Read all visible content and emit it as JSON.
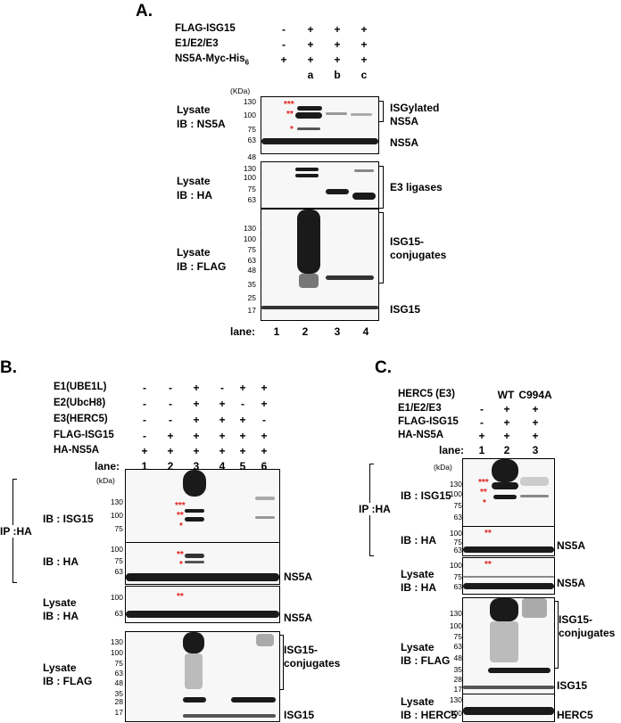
{
  "panelA": {
    "letter": "A.",
    "rows": [
      {
        "label": "FLAG-ISG15",
        "signs": [
          "-",
          "+",
          "+",
          "+"
        ]
      },
      {
        "label": "E1/E2/E3",
        "signs": [
          "-",
          "+",
          "+",
          "+"
        ]
      },
      {
        "label": "NS5A-Myc-His",
        "sub": "6",
        "signs": [
          "+",
          "+",
          "+",
          "+"
        ]
      }
    ],
    "lane_letters": [
      "a",
      "b",
      "c"
    ],
    "kda": "(KDa)",
    "blot1": {
      "label1": "Lysate",
      "label2": "IB : NS5A",
      "markers": [
        "130",
        "100",
        "75",
        "63",
        "48"
      ],
      "stars": [
        "***",
        "**",
        "*"
      ],
      "right1a": "ISGylated",
      "right1b": "NS5A",
      "right2": "NS5A"
    },
    "blot2": {
      "label1": "Lysate",
      "label2": "IB : HA",
      "markers": [
        "130",
        "100",
        "75",
        "63"
      ],
      "right": "E3 ligases"
    },
    "blot3": {
      "label1": "Lysate",
      "label2": "IB : FLAG",
      "markers": [
        "130",
        "100",
        "75",
        "63",
        "48",
        "35",
        "25",
        "17"
      ],
      "right1a": "ISG15-",
      "right1b": "conjugates",
      "right2": "ISG15"
    },
    "lane_label": "lane:",
    "lanes": [
      "1",
      "2",
      "3",
      "4"
    ]
  },
  "panelB": {
    "letter": "B.",
    "rows": [
      {
        "label": "E1(UBE1L)",
        "signs": [
          "-",
          "-",
          "+",
          "-",
          "+",
          "+"
        ]
      },
      {
        "label": "E2(UbcH8)",
        "signs": [
          "-",
          "-",
          "+",
          "+",
          "-",
          "+"
        ]
      },
      {
        "label": "E3(HERC5)",
        "signs": [
          "-",
          "-",
          "+",
          "+",
          "+",
          "-"
        ]
      },
      {
        "label": "FLAG-ISG15",
        "signs": [
          "-",
          "+",
          "+",
          "+",
          "+",
          "+"
        ]
      },
      {
        "label": "HA-NS5A",
        "signs": [
          "+",
          "+",
          "+",
          "+",
          "+",
          "+"
        ]
      }
    ],
    "lane_label": "lane:",
    "lanes": [
      "1",
      "2",
      "3",
      "4",
      "5",
      "6"
    ],
    "ip": "IP :HA",
    "kda": "(kDa)",
    "blot1": {
      "label": "IB : ISG15",
      "markers": [
        "130",
        "100",
        "75"
      ],
      "stars": [
        "***",
        "**",
        "*"
      ]
    },
    "blot2": {
      "label": "IB : HA",
      "markers": [
        "100",
        "75",
        "63"
      ],
      "stars": [
        "**",
        "*"
      ],
      "right": "NS5A"
    },
    "blot3": {
      "label1": "Lysate",
      "label2": "IB : HA",
      "markers": [
        "100",
        "63"
      ],
      "stars": [
        "**"
      ],
      "right": "NS5A"
    },
    "blot4": {
      "label1": "Lysate",
      "label2": "IB : FLAG",
      "markers": [
        "130",
        "100",
        "75",
        "63",
        "48",
        "35",
        "28",
        "17"
      ],
      "right1a": "ISG15-",
      "right1b": "conjugates",
      "right2": "ISG15"
    }
  },
  "panelC": {
    "letter": "C.",
    "rows": [
      {
        "label": "HERC5 (E3)",
        "signs": [
          "",
          "WT",
          "C994A"
        ]
      },
      {
        "label": "E1/E2/E3",
        "signs": [
          "-",
          "+",
          "+"
        ]
      },
      {
        "label": "FLAG-ISG15",
        "signs": [
          "-",
          "+",
          "+"
        ]
      },
      {
        "label": "HA-NS5A",
        "signs": [
          "+",
          "+",
          "+"
        ]
      }
    ],
    "lane_label": "lane:",
    "lanes": [
      "1",
      "2",
      "3"
    ],
    "ip": "IP :HA",
    "kda": "(kDa)",
    "blot1": {
      "label": "IB : ISG15",
      "markers": [
        "130",
        "100",
        "75",
        "63"
      ],
      "stars": [
        "***",
        "**",
        "*"
      ]
    },
    "blot2": {
      "label": "IB : HA",
      "markers": [
        "100",
        "75",
        "63"
      ],
      "stars": [
        "**"
      ],
      "right": "NS5A"
    },
    "blot3": {
      "label1": "Lysate",
      "label2": "IB : HA",
      "markers": [
        "100",
        "75",
        "63"
      ],
      "stars": [
        "**"
      ],
      "right": "NS5A"
    },
    "blot4": {
      "label1": "Lysate",
      "label2": "IB : FLAG",
      "markers": [
        "130",
        "100",
        "75",
        "63",
        "48",
        "35",
        "28",
        "17"
      ],
      "right1a": "ISG15-",
      "right1b": "conjugates",
      "right2": "ISG15"
    },
    "blot5": {
      "label1": "Lysate",
      "label2": "IB : HERC5",
      "markers": [
        "130",
        "100"
      ],
      "right": "HERC5"
    }
  }
}
